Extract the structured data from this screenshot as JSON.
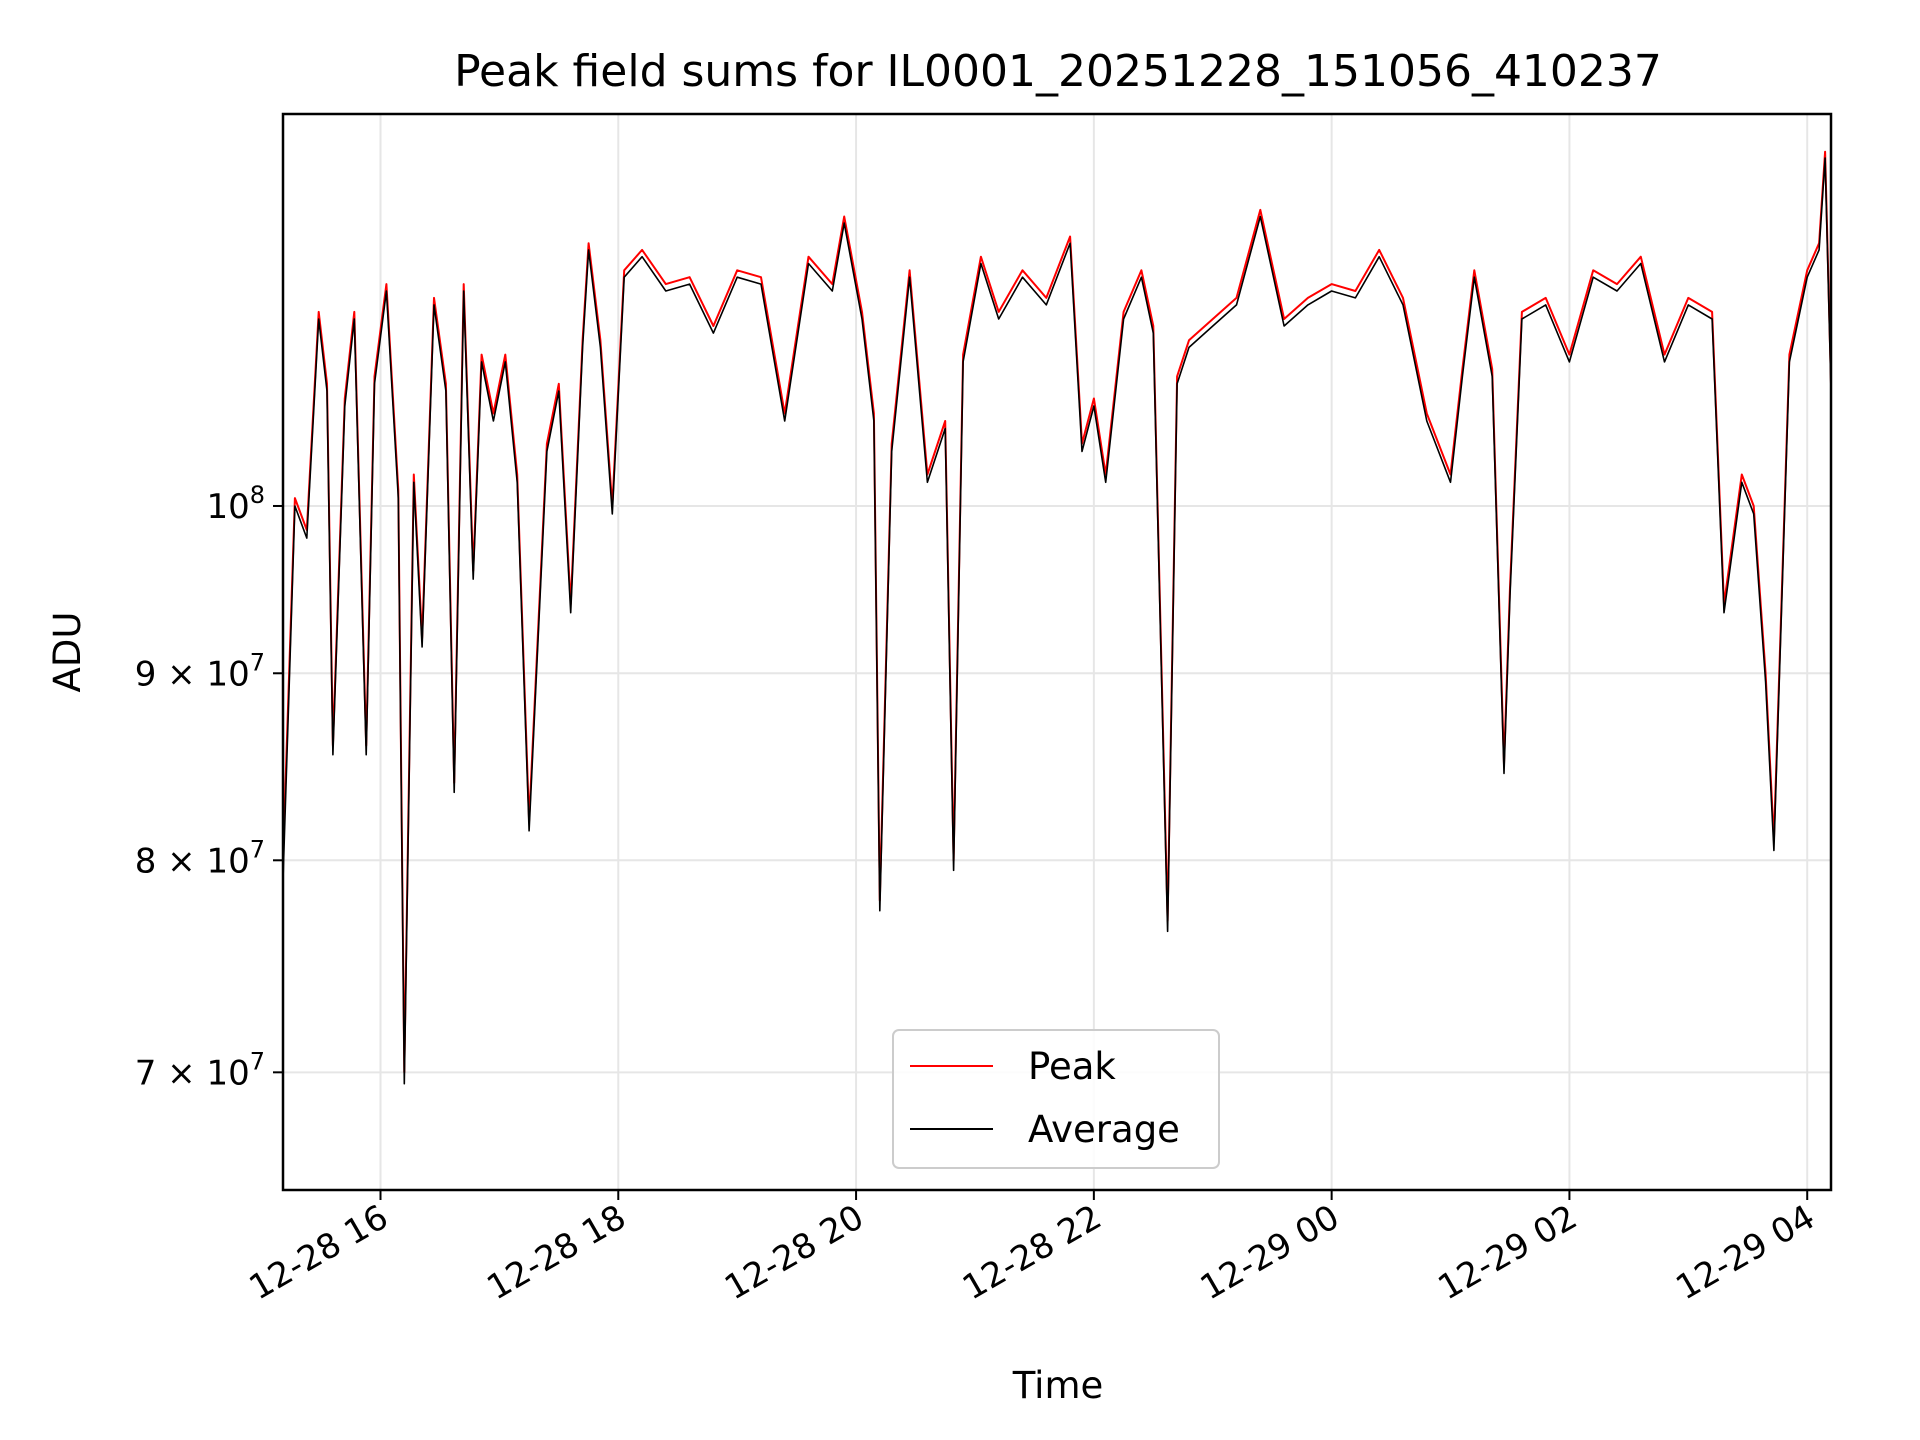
{
  "chart_data": {
    "type": "line",
    "title": "Peak field sums for IL0001_20251228_151056_410237",
    "xlabel": "Time",
    "ylabel": "ADU",
    "yscale": "log",
    "grid": true,
    "legend_position": "lower-center",
    "xlim": [
      15.18,
      28.2
    ],
    "ylim": [
      65000000,
      128000000
    ],
    "x_ticks": [
      {
        "value": 16,
        "label": "12-28 16"
      },
      {
        "value": 18,
        "label": "12-28 18"
      },
      {
        "value": 20,
        "label": "12-28 20"
      },
      {
        "value": 22,
        "label": "12-28 22"
      },
      {
        "value": 24,
        "label": "12-29 00"
      },
      {
        "value": 26,
        "label": "12-29 02"
      },
      {
        "value": 28,
        "label": "12-29 04"
      }
    ],
    "y_ticks": [
      {
        "value": 70000000,
        "base": "7",
        "mult": "×",
        "exp_base": "10",
        "exp": "7"
      },
      {
        "value": 80000000,
        "base": "8",
        "mult": "×",
        "exp_base": "10",
        "exp": "7"
      },
      {
        "value": 90000000,
        "base": "9",
        "mult": "×",
        "exp_base": "10",
        "exp": "7"
      },
      {
        "value": 100000000,
        "base": "",
        "mult": "",
        "exp_base": "10",
        "exp": "8"
      }
    ],
    "x_unit": "hours since 2025-12-28 00:00",
    "series": [
      {
        "name": "Peak",
        "color": "#ff0000",
        "x": [
          15.18,
          15.28,
          15.38,
          15.48,
          15.55,
          15.6,
          15.7,
          15.78,
          15.88,
          15.95,
          16.05,
          16.15,
          16.2,
          16.28,
          16.35,
          16.45,
          16.55,
          16.62,
          16.7,
          16.78,
          16.85,
          16.95,
          17.05,
          17.15,
          17.25,
          17.4,
          17.5,
          17.6,
          17.7,
          17.75,
          17.85,
          17.95,
          18.05,
          18.2,
          18.4,
          18.6,
          18.8,
          19.0,
          19.2,
          19.4,
          19.6,
          19.8,
          19.9,
          20.05,
          20.15,
          20.2,
          20.3,
          20.45,
          20.6,
          20.75,
          20.82,
          20.9,
          21.05,
          21.2,
          21.4,
          21.6,
          21.8,
          21.9,
          22.0,
          22.1,
          22.25,
          22.4,
          22.5,
          22.62,
          22.7,
          22.8,
          23.0,
          23.2,
          23.4,
          23.6,
          23.8,
          24.0,
          24.2,
          24.4,
          24.6,
          24.8,
          25.0,
          25.1,
          25.2,
          25.35,
          25.45,
          25.5,
          25.6,
          25.8,
          26.0,
          26.2,
          26.4,
          26.6,
          26.8,
          27.0,
          27.2,
          27.3,
          27.45,
          27.55,
          27.65,
          27.72,
          27.85,
          28.0,
          28.1,
          28.15,
          28.2
        ],
        "values": [
          80000000,
          100500000,
          98500000,
          113000000,
          108000000,
          86000000,
          107000000,
          113000000,
          86000000,
          108500000,
          115000000,
          101000000,
          70000000,
          102000000,
          92000000,
          114000000,
          108000000,
          84000000,
          115000000,
          96000000,
          110000000,
          106000000,
          110000000,
          102000000,
          82000000,
          104000000,
          108000000,
          94000000,
          111000000,
          118000000,
          111000000,
          100000000,
          116000000,
          117500000,
          115000000,
          115500000,
          112000000,
          116000000,
          115500000,
          106000000,
          117000000,
          115000000,
          120000000,
          113000000,
          106000000,
          78000000,
          104000000,
          116000000,
          102000000,
          105500000,
          80000000,
          110000000,
          117000000,
          113000000,
          116000000,
          114000000,
          118500000,
          104000000,
          107000000,
          102000000,
          113000000,
          116000000,
          112000000,
          77000000,
          108500000,
          111000000,
          112500000,
          114000000,
          120500000,
          112500000,
          114000000,
          115000000,
          114500000,
          117500000,
          114000000,
          106000000,
          102000000,
          109000000,
          116000000,
          109000000,
          85000000,
          95000000,
          113000000,
          114000000,
          110000000,
          116000000,
          115000000,
          117000000,
          110000000,
          114000000,
          113000000,
          94000000,
          102000000,
          100000000,
          90000000,
          81000000,
          110000000,
          116000000,
          118000000,
          125000000,
          108000000
        ]
      },
      {
        "name": "Average",
        "color": "#000000",
        "x": [
          15.18,
          15.28,
          15.38,
          15.48,
          15.55,
          15.6,
          15.7,
          15.78,
          15.88,
          15.95,
          16.05,
          16.15,
          16.2,
          16.28,
          16.35,
          16.45,
          16.55,
          16.62,
          16.7,
          16.78,
          16.85,
          16.95,
          17.05,
          17.15,
          17.25,
          17.4,
          17.5,
          17.6,
          17.7,
          17.75,
          17.85,
          17.95,
          18.05,
          18.2,
          18.4,
          18.6,
          18.8,
          19.0,
          19.2,
          19.4,
          19.6,
          19.8,
          19.9,
          20.05,
          20.15,
          20.2,
          20.3,
          20.45,
          20.6,
          20.75,
          20.82,
          20.9,
          21.05,
          21.2,
          21.4,
          21.6,
          21.8,
          21.9,
          22.0,
          22.1,
          22.25,
          22.4,
          22.5,
          22.62,
          22.7,
          22.8,
          23.0,
          23.2,
          23.4,
          23.6,
          23.8,
          24.0,
          24.2,
          24.4,
          24.6,
          24.8,
          25.0,
          25.1,
          25.2,
          25.35,
          25.45,
          25.5,
          25.6,
          25.8,
          26.0,
          26.2,
          26.4,
          26.6,
          26.8,
          27.0,
          27.2,
          27.3,
          27.45,
          27.55,
          27.65,
          27.72,
          27.85,
          28.0,
          28.1,
          28.15,
          28.2
        ],
        "values": [
          79000000,
          100000000,
          98000000,
          112500000,
          107500000,
          85500000,
          106500000,
          112500000,
          85500000,
          108000000,
          114500000,
          100500000,
          69500000,
          101500000,
          91500000,
          113500000,
          107500000,
          83500000,
          114500000,
          95500000,
          109500000,
          105500000,
          109500000,
          101500000,
          81500000,
          103500000,
          107500000,
          93500000,
          110500000,
          117500000,
          110500000,
          99500000,
          115500000,
          117000000,
          114500000,
          115000000,
          111500000,
          115500000,
          115000000,
          105500000,
          116500000,
          114500000,
          119500000,
          112500000,
          105500000,
          77500000,
          103500000,
          115500000,
          101500000,
          105000000,
          79500000,
          109500000,
          116500000,
          112500000,
          115500000,
          113500000,
          118000000,
          103500000,
          106500000,
          101500000,
          112500000,
          115500000,
          111500000,
          76500000,
          108000000,
          110500000,
          112000000,
          113500000,
          120000000,
          112000000,
          113500000,
          114500000,
          114000000,
          117000000,
          113500000,
          105500000,
          101500000,
          108500000,
          115500000,
          108500000,
          84500000,
          94500000,
          112500000,
          113500000,
          109500000,
          115500000,
          114500000,
          116500000,
          109500000,
          113500000,
          112500000,
          93500000,
          101500000,
          99500000,
          89500000,
          80500000,
          109500000,
          115500000,
          117500000,
          124500000,
          107500000
        ]
      }
    ]
  }
}
